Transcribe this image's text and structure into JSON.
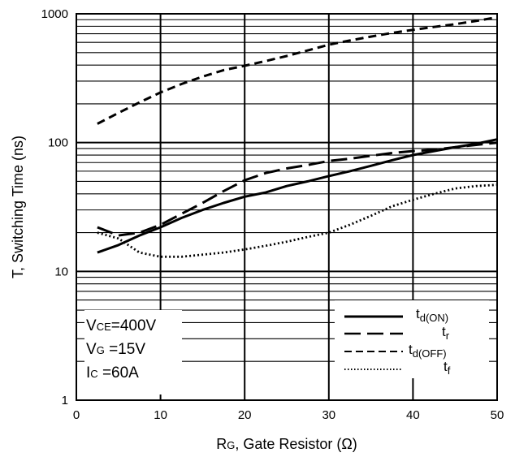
{
  "chart_data": {
    "type": "line",
    "title": "",
    "xlabel": {
      "main": "R",
      "sub": "G",
      "rest": ", Gate Resistor (Ω)"
    },
    "ylabel": "T, Switching Time (ns)",
    "xlim": [
      0,
      50
    ],
    "ylim": [
      1,
      1000
    ],
    "y_scale": "log",
    "grid": true,
    "x_ticks": [
      0,
      10,
      20,
      30,
      40,
      50
    ],
    "y_ticks": [
      1,
      10,
      100,
      1000
    ],
    "conditions": [
      {
        "main": "V",
        "sub": "CE",
        "rest": "=400V"
      },
      {
        "main": "V",
        "sub": "G",
        "rest": " =15V"
      },
      {
        "main": "I",
        "sub": "C",
        "rest": " =60A"
      }
    ],
    "legend_position": "bottom-right",
    "series": [
      {
        "key": "td_on",
        "name": {
          "main": "t",
          "sub": "d(ON)"
        },
        "dash": "solid",
        "x": [
          2.5,
          5,
          7.5,
          10,
          12.5,
          15,
          17.5,
          20,
          22.5,
          25,
          27.5,
          30,
          32.5,
          35,
          37.5,
          40,
          42.5,
          45,
          47.5,
          50
        ],
        "y": [
          14,
          16,
          19,
          22,
          26,
          30,
          34,
          38,
          41,
          46,
          50,
          55,
          60,
          66,
          73,
          80,
          86,
          92,
          98,
          106
        ]
      },
      {
        "key": "tr",
        "name": {
          "main": "t",
          "sub": "r"
        },
        "dash": "long",
        "x": [
          2.5,
          5,
          7.5,
          10,
          12.5,
          15,
          17.5,
          20,
          22.5,
          25,
          27.5,
          30,
          32.5,
          35,
          37.5,
          40,
          42.5,
          45,
          47.5,
          50
        ],
        "y": [
          22,
          19,
          20,
          23,
          28,
          34,
          42,
          51,
          58,
          63,
          67,
          72,
          75,
          79,
          83,
          86,
          88,
          92,
          96,
          100
        ]
      },
      {
        "key": "td_off",
        "name": {
          "main": "t",
          "sub": "d(OFF)"
        },
        "dash": "short",
        "x": [
          2.5,
          5,
          7.5,
          10,
          12.5,
          15,
          17.5,
          20,
          22.5,
          25,
          27.5,
          30,
          32.5,
          35,
          37.5,
          40,
          42.5,
          45,
          47.5,
          50
        ],
        "y": [
          140,
          170,
          205,
          245,
          285,
          325,
          365,
          395,
          430,
          470,
          520,
          575,
          620,
          665,
          710,
          750,
          790,
          830,
          880,
          940
        ]
      },
      {
        "key": "tf",
        "name": {
          "main": "t",
          "sub": "f"
        },
        "dash": "dotted",
        "x": [
          2.5,
          5,
          7.5,
          10,
          12.5,
          15,
          17.5,
          20,
          22.5,
          25,
          27.5,
          30,
          32.5,
          35,
          37.5,
          40,
          42.5,
          45,
          47.5,
          50
        ],
        "y": [
          20,
          18,
          14,
          13,
          13,
          13.5,
          14,
          14.8,
          15.8,
          17,
          18.5,
          20,
          23,
          27,
          32,
          36,
          40,
          44,
          46,
          47
        ]
      }
    ]
  }
}
